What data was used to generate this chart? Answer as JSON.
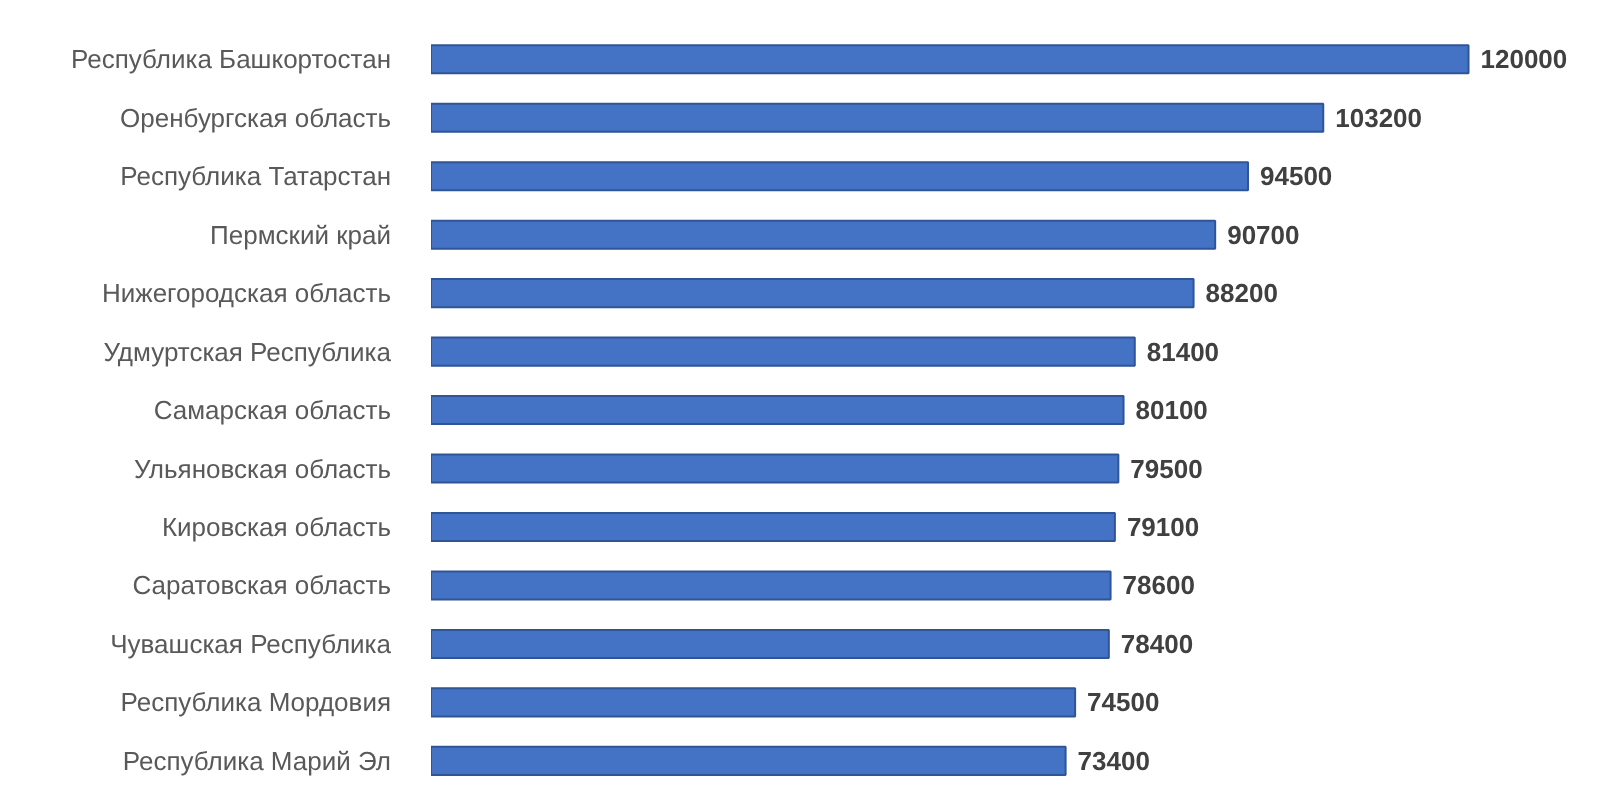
{
  "chart_data": {
    "type": "bar",
    "orientation": "horizontal",
    "categories": [
      "Республика Башкортостан",
      "Оренбургская область",
      "Республика Татарстан",
      "Пермский край",
      "Нижегородская область",
      "Удмуртская Республика",
      "Самарская область",
      "Ульяновская область",
      "Кировская область",
      "Саратовская область",
      "Чувашская Республика",
      "Республика Мордовия",
      "Республика Марий Эл"
    ],
    "values": [
      120000,
      103200,
      94500,
      90700,
      88200,
      81400,
      80100,
      79500,
      79100,
      78600,
      78400,
      74500,
      73400
    ],
    "color": "#4472c4",
    "data_labels": true,
    "tick_labels": "y"
  }
}
